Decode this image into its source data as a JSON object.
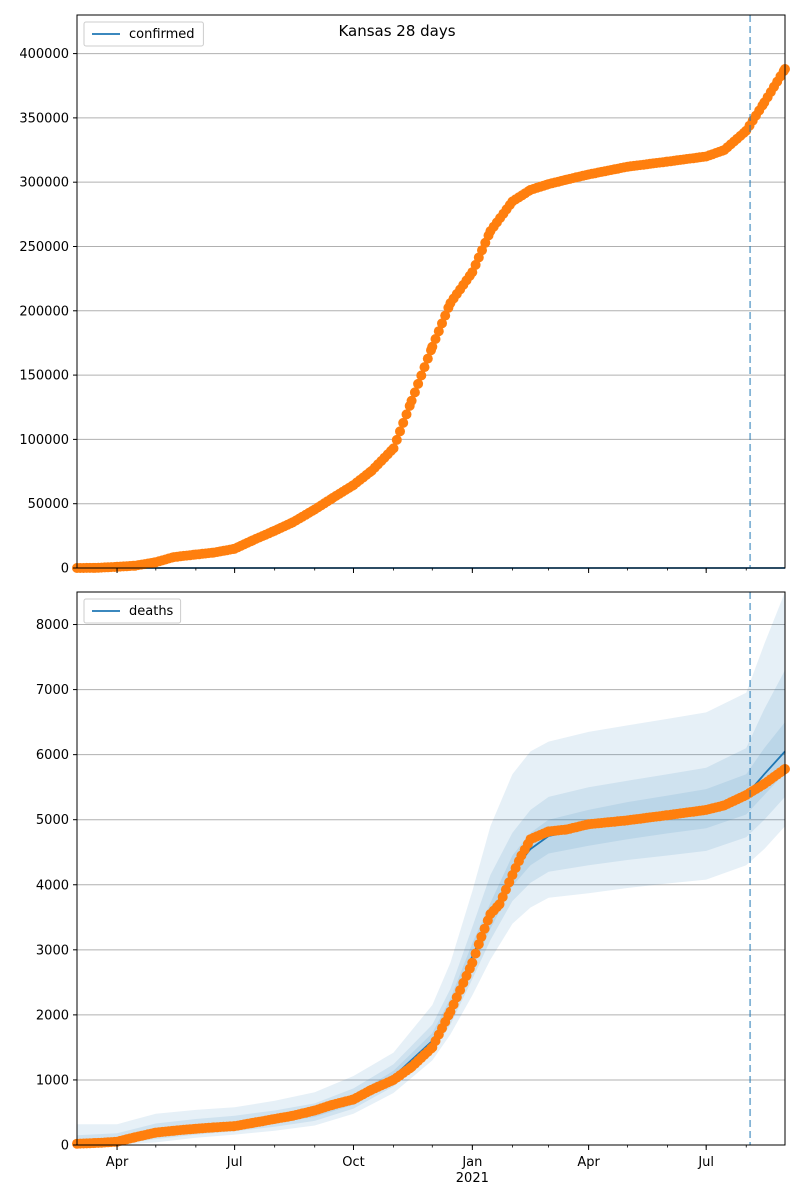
{
  "figure": {
    "title": "Kansas 28 days"
  },
  "colors": {
    "model_line": "#1f77b4",
    "observed": "#ff7f0e",
    "band": "#1f77b4",
    "grid": "#b0b0b0",
    "cutoff_line": "#1f77b4"
  },
  "chart_data": [
    {
      "type": "line",
      "legend": [
        "confirmed"
      ],
      "legend_position": "top-left",
      "grid": "horizontal",
      "x_axis": {
        "type": "date",
        "range": [
          "2020-03-01",
          "2021-08-31"
        ],
        "tick_labels": [
          "Apr",
          "Jul",
          "Oct",
          "Jan\n2021",
          "Apr",
          "Jul"
        ],
        "tick_labels_visible": false
      },
      "ylim": [
        0,
        430000
      ],
      "y_ticks": [
        0,
        50000,
        100000,
        150000,
        200000,
        250000,
        300000,
        350000,
        400000
      ],
      "cutoff_date": "2021-08-04",
      "series": [
        {
          "name": "confirmed",
          "kind": "model",
          "x": [
            "2020-03-01",
            "2021-08-31"
          ],
          "y": [
            0,
            0
          ]
        },
        {
          "kind": "observed",
          "marker": "circle",
          "x": [
            "2020-03-01",
            "2020-03-15",
            "2020-04-01",
            "2020-04-15",
            "2020-05-01",
            "2020-05-15",
            "2020-06-01",
            "2020-06-15",
            "2020-07-01",
            "2020-07-15",
            "2020-08-01",
            "2020-08-15",
            "2020-09-01",
            "2020-09-15",
            "2020-10-01",
            "2020-10-15",
            "2020-11-01",
            "2020-11-15",
            "2020-12-01",
            "2020-12-15",
            "2021-01-01",
            "2021-01-15",
            "2021-02-01",
            "2021-02-15",
            "2021-03-01",
            "2021-03-15",
            "2021-04-01",
            "2021-05-01",
            "2021-06-01",
            "2021-07-01",
            "2021-07-15",
            "2021-08-01",
            "2021-08-15",
            "2021-08-31"
          ],
          "y": [
            0,
            100,
            900,
            1800,
            4500,
            8500,
            10500,
            12000,
            15000,
            21500,
            29000,
            35500,
            45500,
            54500,
            64500,
            75500,
            93000,
            130000,
            172000,
            206000,
            230000,
            262000,
            285000,
            294000,
            298500,
            302000,
            306000,
            312000,
            316000,
            320000,
            325000,
            340000,
            362000,
            388000
          ]
        }
      ]
    },
    {
      "type": "line",
      "legend": [
        "deaths"
      ],
      "legend_position": "top-left",
      "grid": "horizontal",
      "x_axis": {
        "type": "date",
        "range": [
          "2020-03-01",
          "2021-08-31"
        ],
        "tick_labels": [
          "Apr",
          "Jul",
          "Oct",
          "Jan\n2021",
          "Apr",
          "Jul"
        ],
        "tick_labels_visible": true
      },
      "ylim": [
        0,
        8500
      ],
      "y_ticks": [
        0,
        1000,
        2000,
        3000,
        4000,
        5000,
        6000,
        7000,
        8000
      ],
      "cutoff_date": "2021-08-04",
      "series": [
        {
          "name": "deaths",
          "kind": "model",
          "x": [
            "2020-03-01",
            "2020-04-01",
            "2020-05-01",
            "2020-06-01",
            "2020-07-01",
            "2020-08-01",
            "2020-09-01",
            "2020-10-01",
            "2020-11-01",
            "2020-12-01",
            "2020-12-15",
            "2021-01-01",
            "2021-01-15",
            "2021-02-01",
            "2021-02-15",
            "2021-03-01",
            "2021-04-01",
            "2021-05-01",
            "2021-06-01",
            "2021-07-01",
            "2021-08-01",
            "2021-08-15",
            "2021-08-31"
          ],
          "y": [
            20,
            40,
            180,
            250,
            300,
            380,
            480,
            680,
            1050,
            1600,
            2100,
            2900,
            3500,
            4200,
            4550,
            4750,
            4880,
            4990,
            5080,
            5170,
            5380,
            5700,
            6050
          ]
        },
        {
          "kind": "observed",
          "marker": "circle",
          "x": [
            "2020-03-01",
            "2020-03-15",
            "2020-04-01",
            "2020-04-15",
            "2020-05-01",
            "2020-05-15",
            "2020-06-01",
            "2020-06-15",
            "2020-07-01",
            "2020-07-15",
            "2020-08-01",
            "2020-08-15",
            "2020-09-01",
            "2020-09-15",
            "2020-10-01",
            "2020-10-15",
            "2020-11-01",
            "2020-11-15",
            "2020-12-01",
            "2020-12-15",
            "2021-01-01",
            "2021-01-08",
            "2021-01-15",
            "2021-01-22",
            "2021-02-01",
            "2021-02-08",
            "2021-02-15",
            "2021-03-01",
            "2021-03-15",
            "2021-04-01",
            "2021-05-01",
            "2021-06-01",
            "2021-07-01",
            "2021-07-15",
            "2021-08-01",
            "2021-08-15",
            "2021-08-31"
          ],
          "y": [
            20,
            30,
            50,
            120,
            190,
            220,
            250,
            270,
            290,
            340,
            400,
            450,
            530,
            620,
            700,
            850,
            1000,
            1200,
            1500,
            2050,
            2800,
            3200,
            3550,
            3700,
            4150,
            4450,
            4700,
            4820,
            4850,
            4930,
            4990,
            5070,
            5150,
            5220,
            5380,
            5550,
            5780
          ]
        }
      ],
      "uncertainty_bands": [
        {
          "x": [
            "2020-03-01",
            "2020-04-01",
            "2020-05-01",
            "2020-06-01",
            "2020-07-01",
            "2020-08-01",
            "2020-09-01",
            "2020-10-01",
            "2020-11-01",
            "2020-12-01",
            "2020-12-15",
            "2021-01-01",
            "2021-01-15",
            "2021-02-01",
            "2021-02-15",
            "2021-03-01",
            "2021-04-01",
            "2021-05-01",
            "2021-06-01",
            "2021-07-01",
            "2021-08-01",
            "2021-08-15",
            "2021-08-31"
          ],
          "lower": [
            0,
            0,
            40,
            110,
            160,
            220,
            300,
            480,
            800,
            1300,
            1700,
            2300,
            2850,
            3400,
            3650,
            3800,
            3870,
            3950,
            4020,
            4080,
            4300,
            4550,
            4900
          ],
          "upper": [
            320,
            320,
            480,
            540,
            580,
            680,
            810,
            1060,
            1420,
            2150,
            2800,
            3900,
            4900,
            5700,
            6050,
            6200,
            6350,
            6450,
            6550,
            6650,
            6950,
            7700,
            8500
          ]
        },
        {
          "x": [
            "2020-03-01",
            "2020-04-01",
            "2020-05-01",
            "2020-06-01",
            "2020-07-01",
            "2020-08-01",
            "2020-09-01",
            "2020-10-01",
            "2020-11-01",
            "2020-12-01",
            "2020-12-15",
            "2021-01-01",
            "2021-01-15",
            "2021-02-01",
            "2021-02-15",
            "2021-03-01",
            "2021-04-01",
            "2021-05-01",
            "2021-06-01",
            "2021-07-01",
            "2021-08-01",
            "2021-08-15",
            "2021-08-31"
          ],
          "lower": [
            0,
            10,
            90,
            160,
            210,
            280,
            370,
            560,
            900,
            1420,
            1850,
            2550,
            3150,
            3750,
            4030,
            4200,
            4300,
            4380,
            4450,
            4520,
            4730,
            5000,
            5350
          ],
          "upper": [
            150,
            180,
            330,
            400,
            450,
            530,
            640,
            870,
            1240,
            1850,
            2400,
            3350,
            4150,
            4800,
            5150,
            5350,
            5500,
            5600,
            5700,
            5800,
            6100,
            6700,
            7300
          ]
        },
        {
          "x": [
            "2020-03-01",
            "2020-04-01",
            "2020-05-01",
            "2020-06-01",
            "2020-07-01",
            "2020-08-01",
            "2020-09-01",
            "2020-10-01",
            "2020-11-01",
            "2020-12-01",
            "2020-12-15",
            "2021-01-01",
            "2021-01-15",
            "2021-02-01",
            "2021-02-15",
            "2021-03-01",
            "2021-04-01",
            "2021-05-01",
            "2021-06-01",
            "2021-07-01",
            "2021-08-01",
            "2021-08-15",
            "2021-08-31"
          ],
          "lower": [
            5,
            25,
            140,
            210,
            260,
            340,
            430,
            620,
            980,
            1510,
            1980,
            2720,
            3320,
            3980,
            4300,
            4480,
            4600,
            4700,
            4790,
            4870,
            5080,
            5380,
            5720
          ],
          "upper": [
            60,
            80,
            240,
            310,
            360,
            440,
            550,
            760,
            1140,
            1720,
            2250,
            3100,
            3720,
            4450,
            4800,
            5000,
            5150,
            5270,
            5370,
            5470,
            5700,
            6100,
            6500
          ]
        }
      ]
    }
  ]
}
